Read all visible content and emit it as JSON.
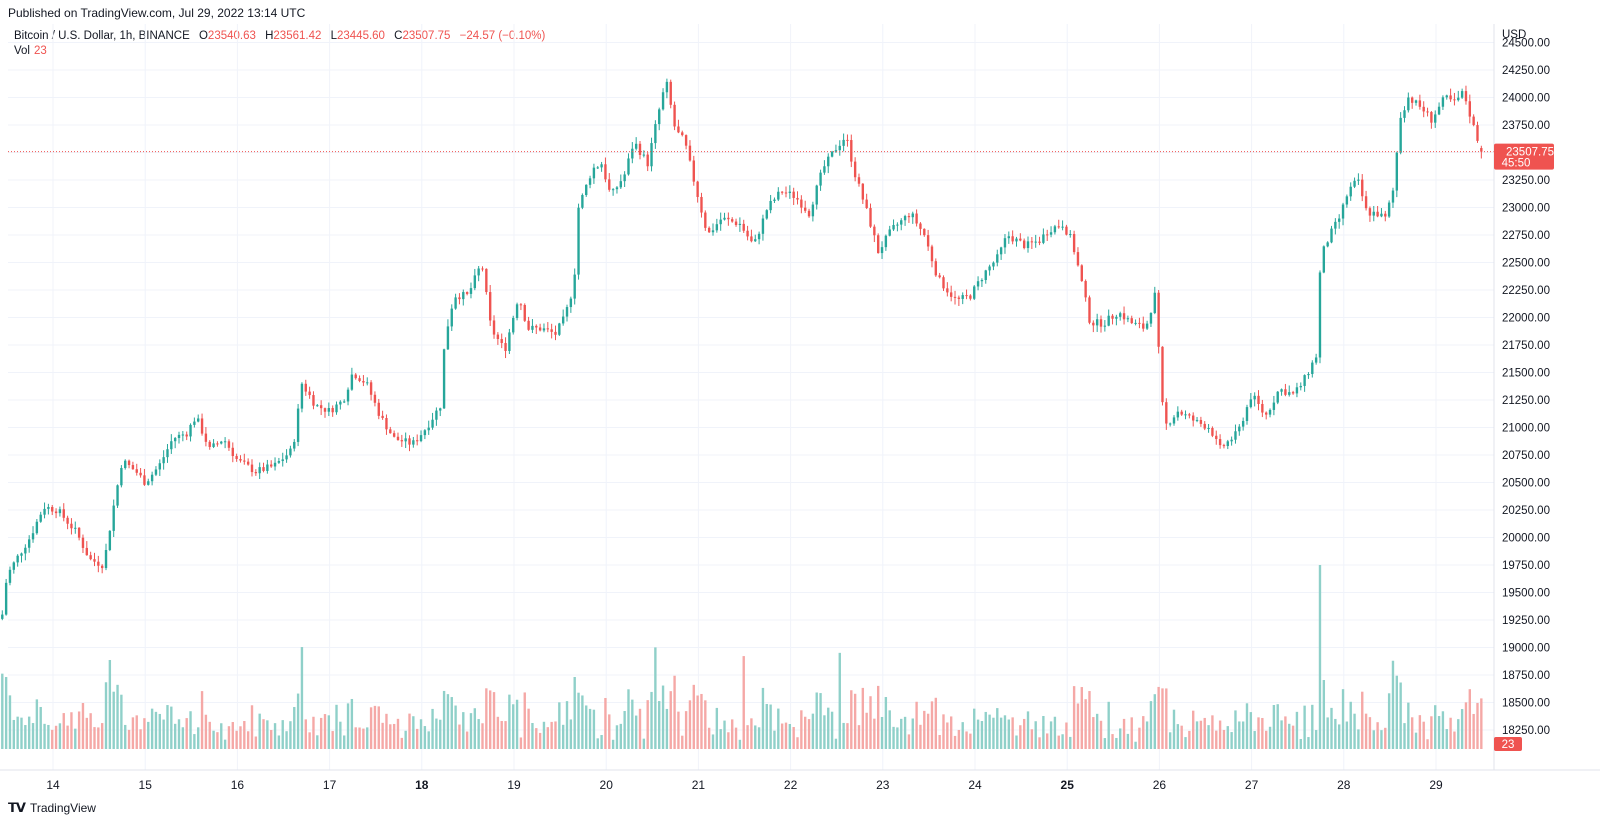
{
  "published": "Published on TradingView.com, Jul 29, 2022 13:14 UTC",
  "legend": {
    "symbol": "Bitcoin / U.S. Dollar, 1h, BINANCE",
    "open_label": "O",
    "open": "23540.63",
    "high_label": "H",
    "high": "23561.42",
    "low_label": "L",
    "low": "23445.60",
    "close_label": "C",
    "close": "23507.75",
    "change": "−24.57 (−0.10%)",
    "vol_label": "Vol",
    "vol": "23"
  },
  "footer": {
    "brand": "TradingView",
    "logo": "tv-logo-icon"
  },
  "colors": {
    "up": "#26a69a",
    "down": "#ef5350",
    "up_vol": "#8fd0c9",
    "down_vol": "#f5a8a6",
    "grid": "#f0f3fa"
  },
  "chart_data": {
    "type": "candlestick",
    "title": "Bitcoin / U.S. Dollar, 1h, BINANCE",
    "currency": "USD",
    "y_ticks": [
      18250,
      18500,
      18750,
      19000,
      19250,
      19500,
      19750,
      20000,
      20250,
      20500,
      20750,
      21000,
      21250,
      21500,
      21750,
      22000,
      22250,
      22500,
      22750,
      23000,
      23250,
      23500,
      23750,
      24000,
      24250,
      24500
    ],
    "ylim": [
      18150,
      24500
    ],
    "x_ticks": [
      "14",
      "15",
      "16",
      "17",
      "18",
      "19",
      "20",
      "21",
      "22",
      "23",
      "24",
      "25",
      "26",
      "27",
      "28",
      "29"
    ],
    "x_ticks_bold": [
      "18",
      "25"
    ],
    "last_price": "23507.75",
    "countdown": "45:50",
    "last_volume": "23",
    "close_path": [
      {
        "day": 13.45,
        "price": 19300
      },
      {
        "day": 13.5,
        "price": 19650
      },
      {
        "day": 13.6,
        "price": 19800
      },
      {
        "day": 13.75,
        "price": 20000
      },
      {
        "day": 13.9,
        "price": 20280
      },
      {
        "day": 14.05,
        "price": 20250
      },
      {
        "day": 14.25,
        "price": 20050
      },
      {
        "day": 14.4,
        "price": 19800
      },
      {
        "day": 14.55,
        "price": 19750
      },
      {
        "day": 14.65,
        "price": 20250
      },
      {
        "day": 14.75,
        "price": 20700
      },
      {
        "day": 14.9,
        "price": 20600
      },
      {
        "day": 15.0,
        "price": 20500
      },
      {
        "day": 15.15,
        "price": 20650
      },
      {
        "day": 15.3,
        "price": 20900
      },
      {
        "day": 15.45,
        "price": 20950
      },
      {
        "day": 15.55,
        "price": 21100
      },
      {
        "day": 15.7,
        "price": 20800
      },
      {
        "day": 15.85,
        "price": 20900
      },
      {
        "day": 16.0,
        "price": 20700
      },
      {
        "day": 16.2,
        "price": 20600
      },
      {
        "day": 16.4,
        "price": 20650
      },
      {
        "day": 16.6,
        "price": 20800
      },
      {
        "day": 16.7,
        "price": 21400
      },
      {
        "day": 16.85,
        "price": 21200
      },
      {
        "day": 17.0,
        "price": 21150
      },
      {
        "day": 17.15,
        "price": 21250
      },
      {
        "day": 17.25,
        "price": 21500
      },
      {
        "day": 17.4,
        "price": 21400
      },
      {
        "day": 17.55,
        "price": 21100
      },
      {
        "day": 17.7,
        "price": 20900
      },
      {
        "day": 17.9,
        "price": 20850
      },
      {
        "day": 18.05,
        "price": 21000
      },
      {
        "day": 18.2,
        "price": 21200
      },
      {
        "day": 18.25,
        "price": 21800
      },
      {
        "day": 18.35,
        "price": 22200
      },
      {
        "day": 18.5,
        "price": 22200
      },
      {
        "day": 18.65,
        "price": 22500
      },
      {
        "day": 18.75,
        "price": 21900
      },
      {
        "day": 18.9,
        "price": 21700
      },
      {
        "day": 19.05,
        "price": 22200
      },
      {
        "day": 19.15,
        "price": 21900
      },
      {
        "day": 19.3,
        "price": 21900
      },
      {
        "day": 19.45,
        "price": 21850
      },
      {
        "day": 19.55,
        "price": 22000
      },
      {
        "day": 19.65,
        "price": 22300
      },
      {
        "day": 19.7,
        "price": 23000
      },
      {
        "day": 19.85,
        "price": 23350
      },
      {
        "day": 19.95,
        "price": 23400
      },
      {
        "day": 20.05,
        "price": 23100
      },
      {
        "day": 20.2,
        "price": 23300
      },
      {
        "day": 20.3,
        "price": 23600
      },
      {
        "day": 20.45,
        "price": 23400
      },
      {
        "day": 20.55,
        "price": 23800
      },
      {
        "day": 20.65,
        "price": 24150
      },
      {
        "day": 20.75,
        "price": 23700
      },
      {
        "day": 20.85,
        "price": 23600
      },
      {
        "day": 20.95,
        "price": 23250
      },
      {
        "day": 21.1,
        "price": 22750
      },
      {
        "day": 21.25,
        "price": 22900
      },
      {
        "day": 21.45,
        "price": 22850
      },
      {
        "day": 21.6,
        "price": 22650
      },
      {
        "day": 21.75,
        "price": 23000
      },
      {
        "day": 21.9,
        "price": 23150
      },
      {
        "day": 22.05,
        "price": 23100
      },
      {
        "day": 22.2,
        "price": 22950
      },
      {
        "day": 22.35,
        "price": 23350
      },
      {
        "day": 22.5,
        "price": 23550
      },
      {
        "day": 22.6,
        "price": 23650
      },
      {
        "day": 22.7,
        "price": 23300
      },
      {
        "day": 22.85,
        "price": 22900
      },
      {
        "day": 22.95,
        "price": 22600
      },
      {
        "day": 23.1,
        "price": 22800
      },
      {
        "day": 23.3,
        "price": 22950
      },
      {
        "day": 23.45,
        "price": 22750
      },
      {
        "day": 23.6,
        "price": 22350
      },
      {
        "day": 23.8,
        "price": 22150
      },
      {
        "day": 23.95,
        "price": 22200
      },
      {
        "day": 24.1,
        "price": 22400
      },
      {
        "day": 24.25,
        "price": 22550
      },
      {
        "day": 24.35,
        "price": 22750
      },
      {
        "day": 24.55,
        "price": 22650
      },
      {
        "day": 24.7,
        "price": 22700
      },
      {
        "day": 24.8,
        "price": 22800
      },
      {
        "day": 24.95,
        "price": 22850
      },
      {
        "day": 25.05,
        "price": 22700
      },
      {
        "day": 25.15,
        "price": 22350
      },
      {
        "day": 25.25,
        "price": 21950
      },
      {
        "day": 25.4,
        "price": 21950
      },
      {
        "day": 25.55,
        "price": 22050
      },
      {
        "day": 25.7,
        "price": 21950
      },
      {
        "day": 25.85,
        "price": 21900
      },
      {
        "day": 25.95,
        "price": 22200
      },
      {
        "day": 26.0,
        "price": 21600
      },
      {
        "day": 26.05,
        "price": 21000
      },
      {
        "day": 26.2,
        "price": 21150
      },
      {
        "day": 26.4,
        "price": 21050
      },
      {
        "day": 26.55,
        "price": 21000
      },
      {
        "day": 26.65,
        "price": 20800
      },
      {
        "day": 26.85,
        "price": 20950
      },
      {
        "day": 27.0,
        "price": 21300
      },
      {
        "day": 27.15,
        "price": 21100
      },
      {
        "day": 27.3,
        "price": 21350
      },
      {
        "day": 27.45,
        "price": 21300
      },
      {
        "day": 27.55,
        "price": 21400
      },
      {
        "day": 27.7,
        "price": 21650
      },
      {
        "day": 27.75,
        "price": 22550
      },
      {
        "day": 27.85,
        "price": 22750
      },
      {
        "day": 27.95,
        "price": 22900
      },
      {
        "day": 28.05,
        "price": 23150
      },
      {
        "day": 28.15,
        "price": 23250
      },
      {
        "day": 28.25,
        "price": 22950
      },
      {
        "day": 28.35,
        "price": 22950
      },
      {
        "day": 28.45,
        "price": 22900
      },
      {
        "day": 28.55,
        "price": 23200
      },
      {
        "day": 28.6,
        "price": 23800
      },
      {
        "day": 28.7,
        "price": 24000
      },
      {
        "day": 28.85,
        "price": 23900
      },
      {
        "day": 28.95,
        "price": 23800
      },
      {
        "day": 29.1,
        "price": 24000
      },
      {
        "day": 29.2,
        "price": 23950
      },
      {
        "day": 29.3,
        "price": 24050
      },
      {
        "day": 29.4,
        "price": 23750
      },
      {
        "day": 29.5,
        "price": 23508
      }
    ]
  }
}
